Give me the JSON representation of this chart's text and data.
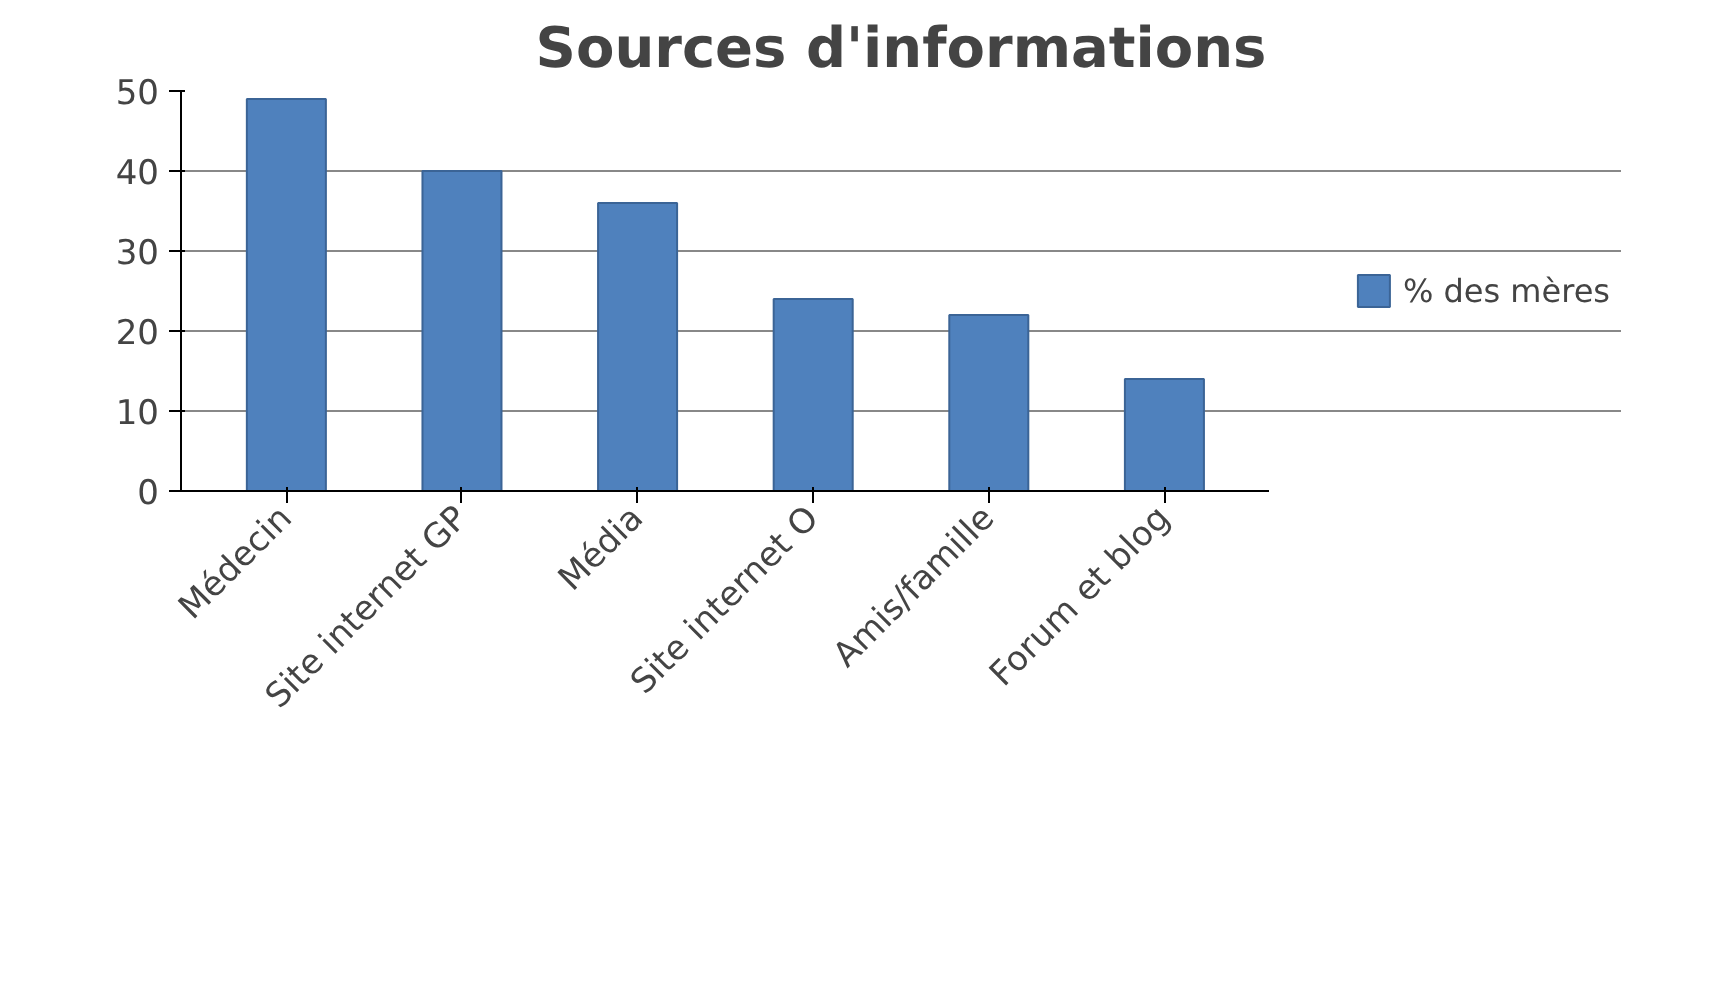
{
  "chart_data": {
    "type": "bar",
    "title": "Sources d'informations",
    "categories": [
      "Médecin",
      "Site internet GP",
      "Média",
      "Site internet O",
      "Amis/famille",
      "Forum et blog"
    ],
    "series": [
      {
        "name": "% des mères",
        "color": "#4f81bd",
        "values": [
          49,
          40,
          36,
          24,
          22,
          14
        ]
      }
    ],
    "ylim": [
      0,
      50
    ],
    "yticks": [
      0,
      10,
      20,
      30,
      40,
      50
    ],
    "grid": "y",
    "legend": "right"
  }
}
